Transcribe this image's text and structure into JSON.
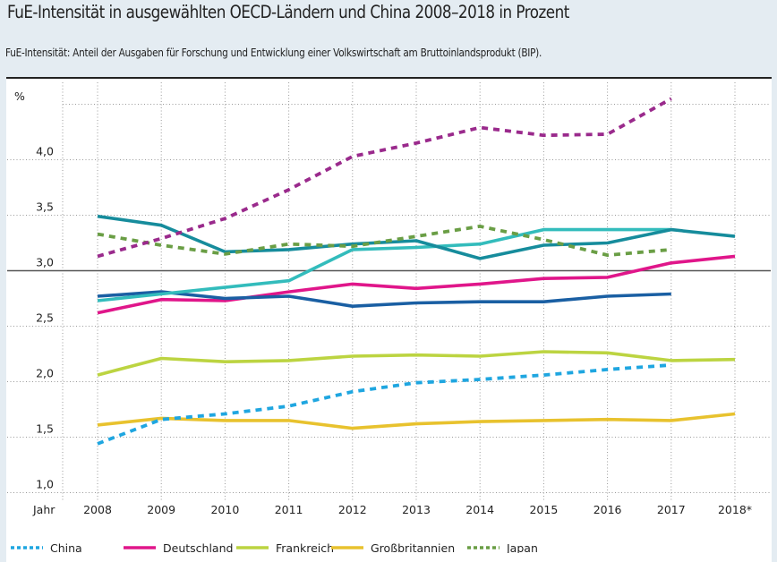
{
  "title": "FuE-Intensität in ausgewählten OECD-Ländern und China 2008–2018 in Prozent",
  "subtitle": "FuE-Intensität: Anteil der Ausgaben für Forschung und Entwicklung einer Volkswirtschaft am Bruttoinlandsprodukt (BIP).",
  "chart_data": {
    "type": "line",
    "title": "FuE-Intensität in ausgewählten OECD-Ländern und China 2008–2018 in Prozent",
    "xlabel": "Jahr",
    "ylabel": "%",
    "categories": [
      "2008",
      "2009",
      "2010",
      "2011",
      "2012",
      "2013",
      "2014",
      "2015",
      "2016",
      "2017",
      "2018*"
    ],
    "ylim": [
      1.0,
      4.5
    ],
    "yticks": [
      1.0,
      1.5,
      2.0,
      2.5,
      3.0,
      3.5,
      4.0
    ],
    "ytick_labels": [
      "1,0",
      "1,5",
      "2,0",
      "2,5",
      "3,0",
      "3,5",
      "4,0"
    ],
    "reference_line": 3.0,
    "grid": true,
    "legend_position": "bottom",
    "series": [
      {
        "name": "China",
        "color": "#1fa6e0",
        "style": "dashed",
        "in_legend": true,
        "values": [
          1.44,
          1.66,
          1.71,
          1.78,
          1.91,
          1.99,
          2.02,
          2.06,
          2.11,
          2.15,
          null
        ]
      },
      {
        "name": "Deutschland",
        "color": "#e0168a",
        "style": "solid",
        "in_legend": true,
        "values": [
          2.62,
          2.74,
          2.73,
          2.81,
          2.88,
          2.84,
          2.88,
          2.93,
          2.94,
          3.07,
          3.13
        ]
      },
      {
        "name": "Frankreich",
        "color": "#bcd441",
        "style": "solid",
        "in_legend": true,
        "values": [
          2.06,
          2.21,
          2.18,
          2.19,
          2.23,
          2.24,
          2.23,
          2.27,
          2.26,
          2.19,
          2.2
        ]
      },
      {
        "name": "Großbritannien",
        "color": "#e8c22e",
        "style": "solid",
        "in_legend": true,
        "values": [
          1.61,
          1.67,
          1.65,
          1.65,
          1.58,
          1.62,
          1.64,
          1.65,
          1.66,
          1.65,
          1.71
        ]
      },
      {
        "name": "Japan",
        "color": "#6a9e45",
        "style": "dashed",
        "in_legend": true,
        "values": [
          3.33,
          3.23,
          3.15,
          3.24,
          3.22,
          3.31,
          3.4,
          3.28,
          3.14,
          3.19,
          null
        ]
      },
      {
        "name": "",
        "color": "#9a2a8c",
        "style": "dashed",
        "in_legend": false,
        "values": [
          3.13,
          3.29,
          3.47,
          3.73,
          4.03,
          4.15,
          4.29,
          4.22,
          4.23,
          4.55,
          null
        ]
      },
      {
        "name": "",
        "color": "#168c9c",
        "style": "solid",
        "in_legend": false,
        "values": [
          3.49,
          3.41,
          3.17,
          3.19,
          3.24,
          3.27,
          3.11,
          3.23,
          3.25,
          3.37,
          3.31
        ]
      },
      {
        "name": "",
        "color": "#33bcbc",
        "style": "solid",
        "in_legend": false,
        "values": [
          2.73,
          2.79,
          2.85,
          2.91,
          3.19,
          3.21,
          3.24,
          3.37,
          3.37,
          3.37,
          null
        ]
      },
      {
        "name": "",
        "color": "#1a5fa3",
        "style": "solid",
        "in_legend": false,
        "values": [
          2.77,
          2.81,
          2.75,
          2.77,
          2.68,
          2.71,
          2.72,
          2.72,
          2.77,
          2.79,
          null
        ]
      }
    ]
  }
}
